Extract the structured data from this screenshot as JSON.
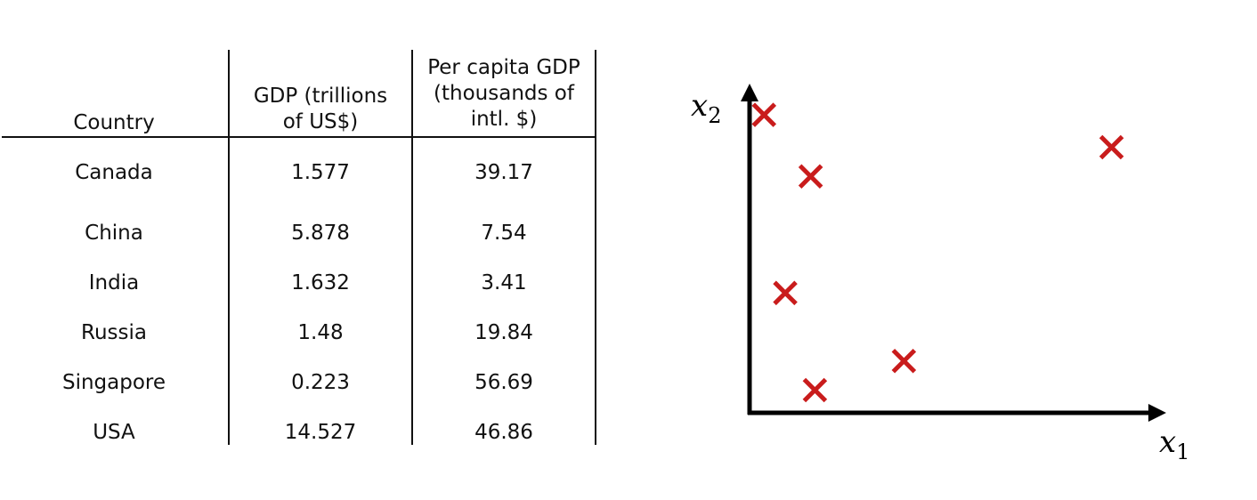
{
  "table": {
    "headers": [
      [
        "Country"
      ],
      [
        "GDP (trillions",
        "of US$)"
      ],
      [
        "Per capita GDP",
        "(thousands of",
        "intl. $)"
      ]
    ],
    "rows": [
      [
        "Canada",
        "1.577",
        "39.17"
      ],
      [
        "China",
        "5.878",
        "7.54"
      ],
      [
        "India",
        "1.632",
        "3.41"
      ],
      [
        "Russia",
        "1.48",
        "19.84"
      ],
      [
        "Singapore",
        "0.223",
        "56.69"
      ],
      [
        "USA",
        "14.527",
        "46.86"
      ]
    ]
  },
  "plot": {
    "x_label": "x",
    "x_sub": "1",
    "y_label": "x",
    "y_sub": "2",
    "marker_color": "#c91c1c",
    "points": [
      {
        "x": 0.03,
        "y": 0.92
      },
      {
        "x": 0.85,
        "y": 0.82
      },
      {
        "x": 0.14,
        "y": 0.73
      },
      {
        "x": 0.08,
        "y": 0.37
      },
      {
        "x": 0.36,
        "y": 0.16
      },
      {
        "x": 0.15,
        "y": 0.07
      }
    ]
  }
}
